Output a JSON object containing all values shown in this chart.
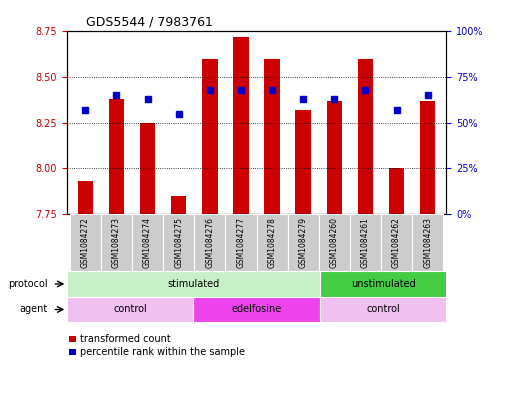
{
  "title": "GDS5544 / 7983761",
  "samples": [
    "GSM1084272",
    "GSM1084273",
    "GSM1084274",
    "GSM1084275",
    "GSM1084276",
    "GSM1084277",
    "GSM1084278",
    "GSM1084279",
    "GSM1084260",
    "GSM1084261",
    "GSM1084262",
    "GSM1084263"
  ],
  "bar_bottom": 7.75,
  "bar_tops": [
    7.93,
    8.38,
    8.25,
    7.85,
    8.6,
    8.72,
    8.6,
    8.32,
    8.37,
    8.6,
    8.0,
    8.37
  ],
  "dot_percentiles": [
    57,
    65,
    63,
    55,
    68,
    68,
    68,
    63,
    63,
    68,
    57,
    65
  ],
  "ylim_left": [
    7.75,
    8.75
  ],
  "ylim_right": [
    0,
    100
  ],
  "yticks_left": [
    7.75,
    8.0,
    8.25,
    8.5,
    8.75
  ],
  "yticks_right": [
    0,
    25,
    50,
    75,
    100
  ],
  "ytick_labels_right": [
    "0%",
    "25%",
    "50%",
    "75%",
    "100%"
  ],
  "bar_color": "#cc0000",
  "dot_color": "#0000cc",
  "protocol_groups": [
    {
      "label": "stimulated",
      "start": 0,
      "end": 8,
      "color": "#c8f0c8"
    },
    {
      "label": "unstimulated",
      "start": 8,
      "end": 12,
      "color": "#44cc44"
    }
  ],
  "agent_groups": [
    {
      "label": "control",
      "start": 0,
      "end": 4,
      "color": "#f0c0f0"
    },
    {
      "label": "edelfosine",
      "start": 4,
      "end": 8,
      "color": "#ee44ee"
    },
    {
      "label": "control",
      "start": 8,
      "end": 12,
      "color": "#f0c0f0"
    }
  ],
  "legend_bar_label": "transformed count",
  "legend_dot_label": "percentile rank within the sample",
  "tick_color_left": "#cc0000",
  "tick_color_right": "#0000cc",
  "sample_label_bg": "#cccccc"
}
